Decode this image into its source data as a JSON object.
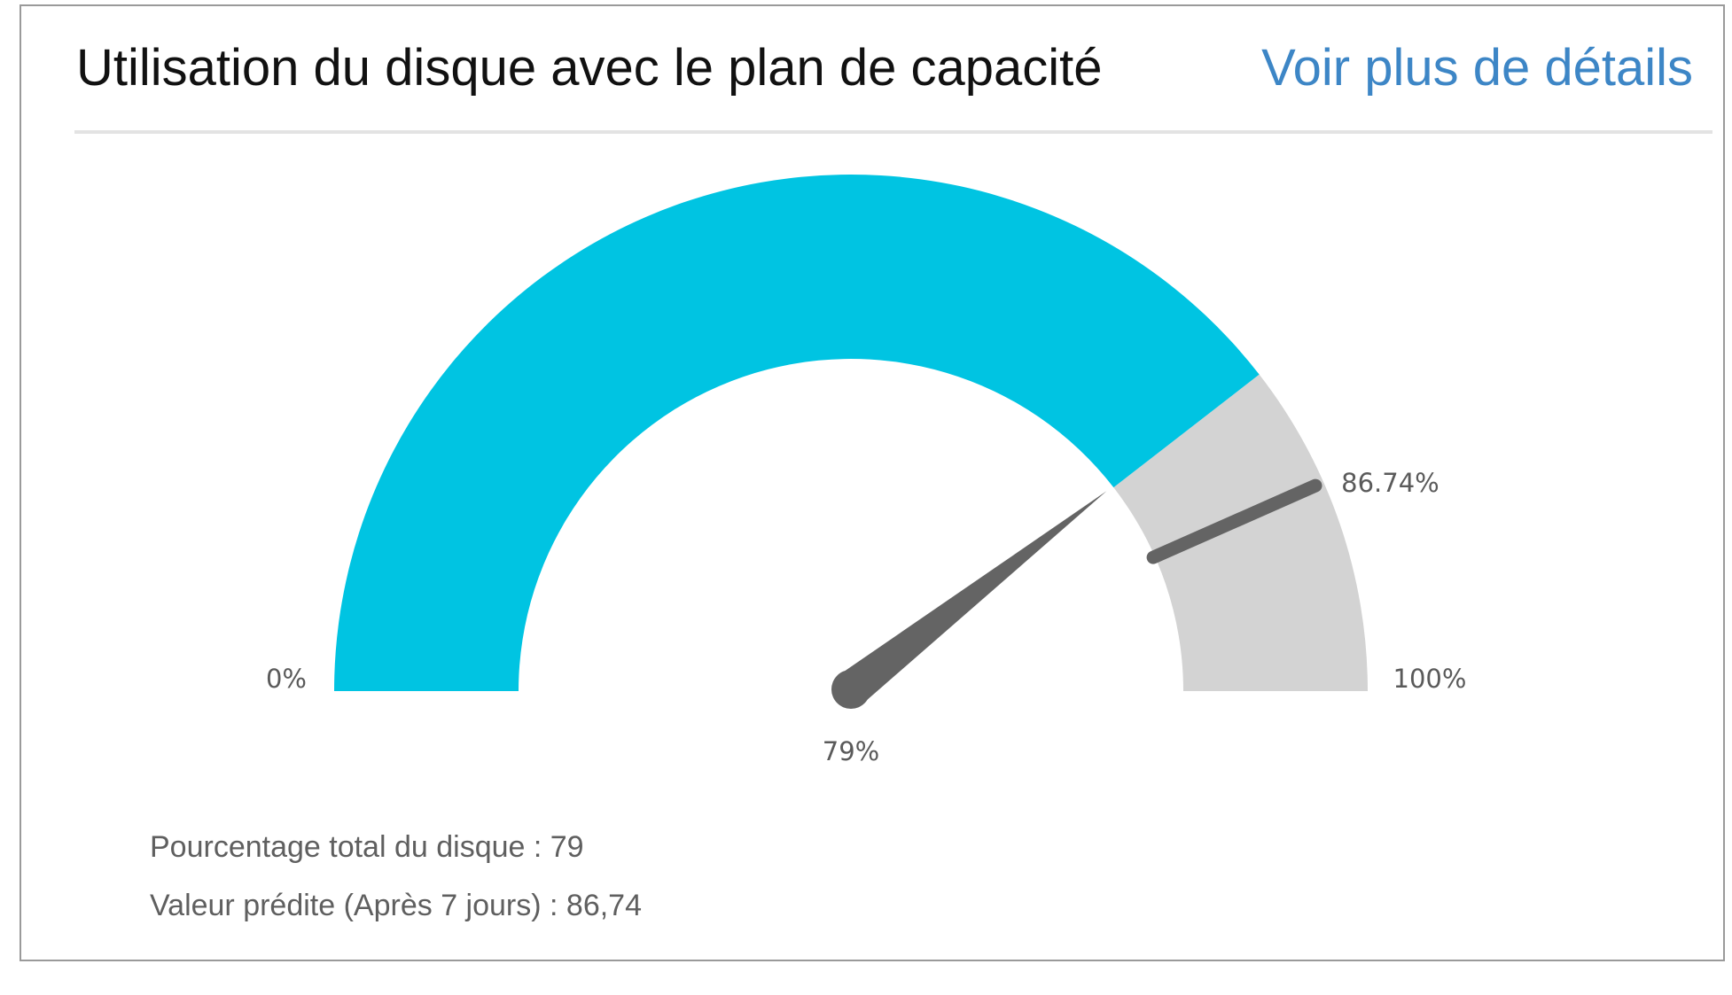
{
  "widget": {
    "title": "Utilisation du disque avec le plan de capacité",
    "details_link": "Voir plus de détails"
  },
  "gauge": {
    "min_label": "0%",
    "max_label": "100%",
    "value": 79,
    "value_label": "79%",
    "predicted_value": 86.74,
    "predicted_label": "86.74%",
    "min": 0,
    "max": 100,
    "colors": {
      "filled": "#00c4e2",
      "remaining": "#d3d3d3",
      "needle": "#646464",
      "marker": "#646464"
    }
  },
  "info": {
    "total_line": "Pourcentage total du disque : 79",
    "predicted_line": "Valeur prédite (Après 7 jours) : 86,74"
  }
}
